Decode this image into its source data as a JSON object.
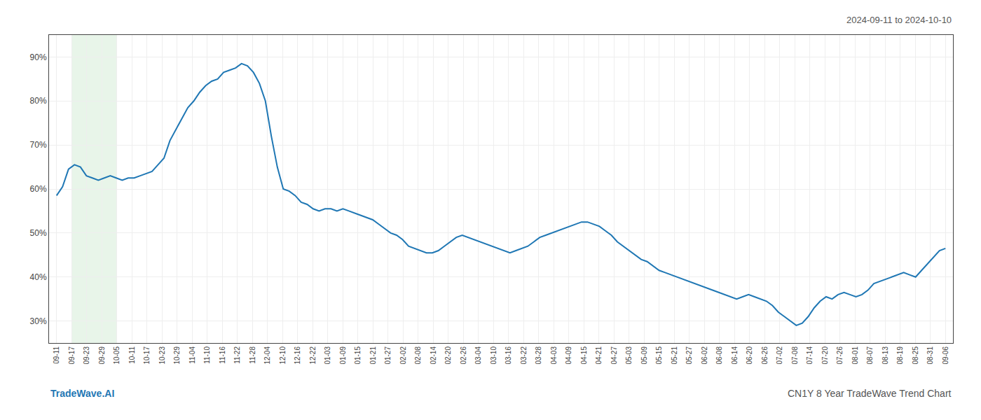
{
  "chart_data": {
    "type": "line",
    "annotations": [
      "2024-09-11 to 2024-10-10",
      "TradeWave.AI",
      "CN1Y 8 Year TradeWave Trend Chart"
    ],
    "color": "#1f77b4",
    "grid": true,
    "highlight": {
      "range": [
        1,
        4
      ],
      "color": "#e8f5e9"
    },
    "xlim": [
      -0.5,
      59.5
    ],
    "xticks": [
      {
        "value": 0,
        "label": "09-11"
      },
      {
        "value": 1,
        "label": "09-17"
      },
      {
        "value": 2,
        "label": "09-23"
      },
      {
        "value": 3,
        "label": "09-29"
      },
      {
        "value": 4,
        "label": "10-05"
      },
      {
        "value": 5,
        "label": "10-11"
      },
      {
        "value": 6,
        "label": "10-17"
      },
      {
        "value": 7,
        "label": "10-23"
      },
      {
        "value": 8,
        "label": "10-29"
      },
      {
        "value": 9,
        "label": "11-04"
      },
      {
        "value": 10,
        "label": "11-10"
      },
      {
        "value": 11,
        "label": "11-16"
      },
      {
        "value": 12,
        "label": "11-22"
      },
      {
        "value": 13,
        "label": "11-28"
      },
      {
        "value": 14,
        "label": "12-04"
      },
      {
        "value": 15,
        "label": "12-10"
      },
      {
        "value": 16,
        "label": "12-16"
      },
      {
        "value": 17,
        "label": "12-22"
      },
      {
        "value": 18,
        "label": "01-03"
      },
      {
        "value": 19,
        "label": "01-09"
      },
      {
        "value": 20,
        "label": "01-15"
      },
      {
        "value": 21,
        "label": "01-21"
      },
      {
        "value": 22,
        "label": "01-27"
      },
      {
        "value": 23,
        "label": "02-02"
      },
      {
        "value": 24,
        "label": "02-08"
      },
      {
        "value": 25,
        "label": "02-14"
      },
      {
        "value": 26,
        "label": "02-20"
      },
      {
        "value": 27,
        "label": "02-26"
      },
      {
        "value": 28,
        "label": "03-04"
      },
      {
        "value": 29,
        "label": "03-10"
      },
      {
        "value": 30,
        "label": "03-16"
      },
      {
        "value": 31,
        "label": "03-22"
      },
      {
        "value": 32,
        "label": "03-28"
      },
      {
        "value": 33,
        "label": "04-03"
      },
      {
        "value": 34,
        "label": "04-09"
      },
      {
        "value": 35,
        "label": "04-15"
      },
      {
        "value": 36,
        "label": "04-21"
      },
      {
        "value": 37,
        "label": "04-27"
      },
      {
        "value": 38,
        "label": "05-03"
      },
      {
        "value": 39,
        "label": "05-09"
      },
      {
        "value": 40,
        "label": "05-15"
      },
      {
        "value": 41,
        "label": "05-21"
      },
      {
        "value": 42,
        "label": "05-27"
      },
      {
        "value": 43,
        "label": "06-02"
      },
      {
        "value": 44,
        "label": "06-08"
      },
      {
        "value": 45,
        "label": "06-14"
      },
      {
        "value": 46,
        "label": "06-20"
      },
      {
        "value": 47,
        "label": "06-26"
      },
      {
        "value": 48,
        "label": "07-02"
      },
      {
        "value": 49,
        "label": "07-08"
      },
      {
        "value": 50,
        "label": "07-14"
      },
      {
        "value": 51,
        "label": "07-20"
      },
      {
        "value": 52,
        "label": "07-26"
      },
      {
        "value": 53,
        "label": "08-01"
      },
      {
        "value": 54,
        "label": "08-07"
      },
      {
        "value": 55,
        "label": "08-13"
      },
      {
        "value": 56,
        "label": "08-19"
      },
      {
        "value": 57,
        "label": "08-25"
      },
      {
        "value": 58,
        "label": "08-31"
      },
      {
        "value": 59,
        "label": "09-06"
      }
    ],
    "ylim": [
      25,
      95
    ],
    "yticks": [
      {
        "value": 30,
        "label": "30%"
      },
      {
        "value": 40,
        "label": "40%"
      },
      {
        "value": 50,
        "label": "50%"
      },
      {
        "value": 60,
        "label": "60%"
      },
      {
        "value": 70,
        "label": "70%"
      },
      {
        "value": 80,
        "label": "80%"
      },
      {
        "value": 90,
        "label": "90%"
      }
    ],
    "x": [
      0,
      0.396,
      0.7919,
      1.1879,
      1.5839,
      1.9799,
      2.3758,
      2.7718,
      3.1678,
      3.5638,
      3.9597,
      4.3557,
      4.7517,
      5.1477,
      5.5436,
      5.9396,
      6.3356,
      6.7315,
      7.1275,
      7.5235,
      7.9195,
      8.3154,
      8.7114,
      9.1074,
      9.5034,
      9.8993,
      10.2953,
      10.6913,
      11.0872,
      11.4832,
      11.8792,
      12.2752,
      12.6711,
      13.0671,
      13.4631,
      13.8591,
      14.255,
      14.651,
      15.047,
      15.443,
      15.8389,
      16.2349,
      16.6309,
      17.0268,
      17.4228,
      17.8188,
      18.2148,
      18.6107,
      19.0067,
      19.4027,
      19.7987,
      20.1946,
      20.5906,
      20.9866,
      21.3826,
      21.7785,
      22.1745,
      22.5705,
      22.9664,
      23.3624,
      23.7584,
      24.1544,
      24.5503,
      24.9463,
      25.3423,
      25.7383,
      26.1342,
      26.5302,
      26.9262,
      27.3221,
      27.7181,
      28.1141,
      28.5101,
      28.906,
      29.302,
      29.698,
      30.094,
      30.4899,
      30.8859,
      31.2819,
      31.6779,
      32.0738,
      32.4698,
      32.8658,
      33.2617,
      33.6577,
      34.0537,
      34.4497,
      34.8456,
      35.2416,
      35.6376,
      36.0336,
      36.4295,
      36.8255,
      37.2215,
      37.6174,
      38.0134,
      38.4094,
      38.8054,
      39.2013,
      39.5973,
      39.9933,
      40.3893,
      40.7852,
      41.1812,
      41.5772,
      41.9732,
      42.3691,
      42.7651,
      43.1611,
      43.557,
      43.953,
      44.349,
      44.745,
      45.1409,
      45.5369,
      45.9329,
      46.3289,
      46.7248,
      47.1208,
      47.5168,
      47.9128,
      48.3087,
      48.7047,
      49.1007,
      49.4966,
      49.8926,
      50.2886,
      50.6846,
      51.0805,
      51.4765,
      51.8725,
      52.2685,
      52.6644,
      53.0604,
      53.4564,
      53.8523,
      54.2483,
      54.6443,
      55.0403,
      55.4362,
      55.8322,
      56.2282,
      56.6242,
      57.0201,
      57.4161,
      57.8121,
      58.2081,
      58.604,
      59
    ],
    "values": [
      58.5,
      60.5,
      64.5,
      65.5,
      65.0,
      63.0,
      62.5,
      62.0,
      62.5,
      63.0,
      62.5,
      62.0,
      62.5,
      62.5,
      63.0,
      63.5,
      64.0,
      65.5,
      67.0,
      71.0,
      73.5,
      76.0,
      78.5,
      80.0,
      82.0,
      83.5,
      84.5,
      85.0,
      86.5,
      87.0,
      87.5,
      88.5,
      88.0,
      86.5,
      84.0,
      80.0,
      72.0,
      65.0,
      60.0,
      59.5,
      58.5,
      57.0,
      56.5,
      55.5,
      55.0,
      55.5,
      55.5,
      55.0,
      55.5,
      55.0,
      54.5,
      54.0,
      53.5,
      53.0,
      52.0,
      51.0,
      50.0,
      49.5,
      48.5,
      47.0,
      46.5,
      46.0,
      45.5,
      45.5,
      46.0,
      47.0,
      48.0,
      49.0,
      49.5,
      49.0,
      48.5,
      48.0,
      47.5,
      47.0,
      46.5,
      46.0,
      45.5,
      46.0,
      46.5,
      47.0,
      48.0,
      49.0,
      49.5,
      50.0,
      50.5,
      51.0,
      51.5,
      52.0,
      52.5,
      52.5,
      52.0,
      51.5,
      50.5,
      49.5,
      48.0,
      47.0,
      46.0,
      45.0,
      44.0,
      43.5,
      42.5,
      41.5,
      41.0,
      40.5,
      40.0,
      39.5,
      39.0,
      38.5,
      38.0,
      37.5,
      37.0,
      36.5,
      36.0,
      35.5,
      35.0,
      35.5,
      36.0,
      35.5,
      35.0,
      34.5,
      33.5,
      32.0,
      31.0,
      30.0,
      29.0,
      29.5,
      31.0,
      33.0,
      34.5,
      35.5,
      35.0,
      36.0,
      36.5,
      36.0,
      35.5,
      36.0,
      37.0,
      38.5,
      39.0,
      39.5,
      40.0,
      40.5,
      41.0,
      40.5,
      40.0,
      41.5,
      43.0,
      44.5,
      46.0,
      46.5
    ]
  }
}
